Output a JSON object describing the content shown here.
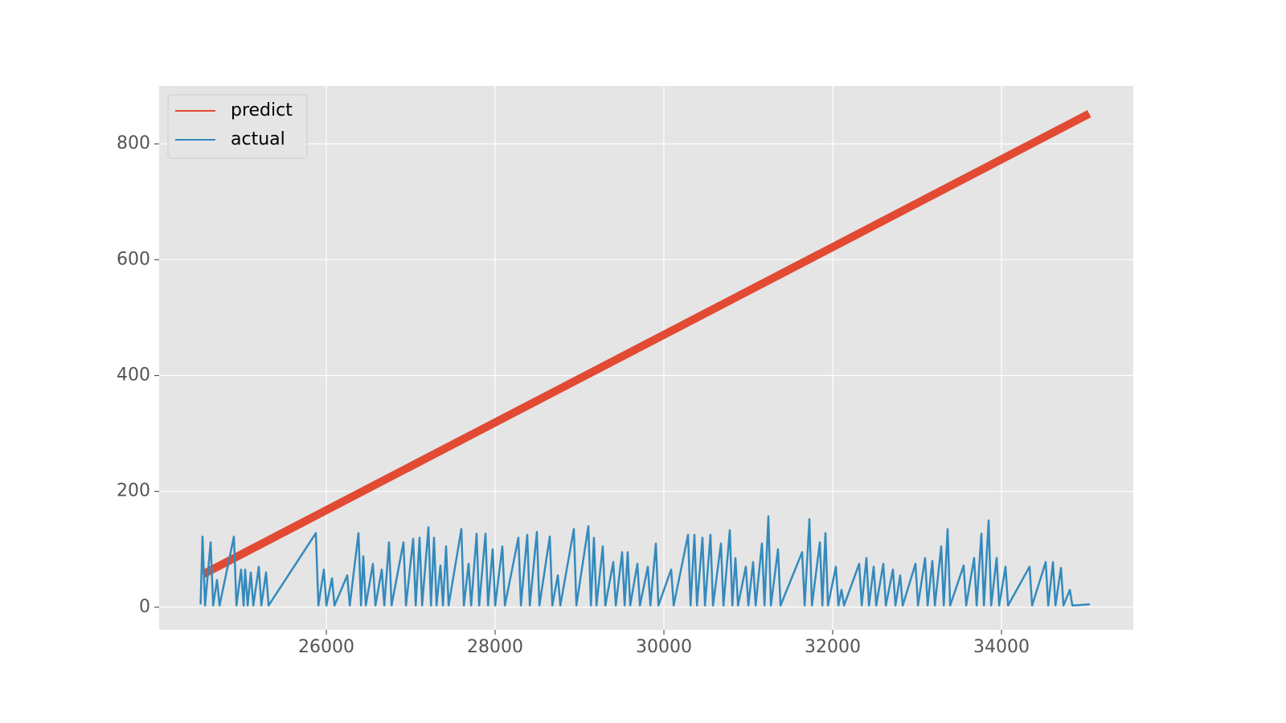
{
  "chart_data": {
    "type": "line",
    "xlim": [
      24019,
      35562
    ],
    "ylim": [
      -39,
      900
    ],
    "xticks": [
      26000,
      28000,
      30000,
      32000,
      34000
    ],
    "yticks": [
      0,
      200,
      400,
      600,
      800
    ],
    "grid": true,
    "legend": "upper-left",
    "series": [
      {
        "name": "predict",
        "color": "#E24A33",
        "x": [
          24540,
          35040
        ],
        "values": [
          57,
          852
        ]
      },
      {
        "name": "actual",
        "color": "#348ABD",
        "x": [
          24510,
          24533,
          24563,
          24629,
          24659,
          24705,
          24735,
          24905,
          24935,
          24990,
          25020,
          25038,
          25068,
          25105,
          25135,
          25200,
          25230,
          25286,
          25316,
          25876,
          25906,
          25971,
          26001,
          26067,
          26097,
          26248,
          26278,
          26381,
          26411,
          26438,
          26468,
          26552,
          26582,
          26657,
          26687,
          26743,
          26773,
          26914,
          26944,
          27029,
          27059,
          27105,
          27135,
          27210,
          27240,
          27276,
          27306,
          27352,
          27382,
          27419,
          27449,
          27600,
          27630,
          27686,
          27716,
          27781,
          27811,
          27886,
          27916,
          27971,
          28001,
          28086,
          28116,
          28276,
          28306,
          28381,
          28411,
          28495,
          28525,
          28648,
          28678,
          28743,
          28773,
          28933,
          28963,
          29105,
          29135,
          29171,
          29201,
          29276,
          29306,
          29400,
          29430,
          29505,
          29535,
          29571,
          29601,
          29686,
          29716,
          29810,
          29840,
          29905,
          29935,
          30086,
          30116,
          30286,
          30316,
          30362,
          30392,
          30457,
          30487,
          30552,
          30582,
          30676,
          30706,
          30781,
          30811,
          30848,
          30878,
          30971,
          31001,
          31057,
          31087,
          31162,
          31192,
          31238,
          31268,
          31352,
          31382,
          31638,
          31668,
          31724,
          31754,
          31848,
          31878,
          31914,
          31944,
          32038,
          32068,
          32105,
          32135,
          32314,
          32344,
          32400,
          32430,
          32486,
          32516,
          32600,
          32630,
          32714,
          32744,
          32800,
          32830,
          32981,
          33011,
          33095,
          33125,
          33181,
          33211,
          33286,
          33316,
          33362,
          33392,
          33552,
          33582,
          33676,
          33706,
          33762,
          33792,
          33848,
          33878,
          33943,
          33973,
          34048,
          34078,
          34333,
          34363,
          34524,
          34554,
          34610,
          34640,
          34705,
          34735,
          34810,
          34840,
          35048
        ],
        "values": [
          5,
          122,
          3,
          112,
          3,
          47,
          3,
          122,
          3,
          65,
          3,
          65,
          3,
          60,
          3,
          70,
          3,
          60,
          3,
          128,
          3,
          65,
          3,
          50,
          3,
          55,
          3,
          128,
          3,
          88,
          3,
          75,
          3,
          65,
          3,
          112,
          3,
          112,
          3,
          118,
          3,
          120,
          3,
          138,
          3,
          120,
          3,
          72,
          3,
          105,
          3,
          135,
          3,
          75,
          3,
          127,
          3,
          127,
          3,
          100,
          3,
          105,
          3,
          120,
          3,
          125,
          3,
          130,
          3,
          122,
          3,
          55,
          3,
          135,
          3,
          140,
          3,
          120,
          3,
          105,
          3,
          78,
          3,
          95,
          3,
          95,
          3,
          75,
          3,
          70,
          3,
          110,
          3,
          65,
          3,
          125,
          3,
          125,
          3,
          120,
          3,
          125,
          3,
          110,
          3,
          133,
          3,
          85,
          3,
          70,
          3,
          78,
          3,
          110,
          3,
          157,
          3,
          100,
          3,
          95,
          3,
          152,
          3,
          112,
          3,
          128,
          3,
          70,
          3,
          30,
          3,
          75,
          3,
          85,
          3,
          70,
          3,
          75,
          3,
          65,
          3,
          55,
          3,
          75,
          3,
          85,
          3,
          80,
          3,
          105,
          3,
          135,
          3,
          72,
          3,
          85,
          3,
          127,
          3,
          150,
          3,
          85,
          3,
          70,
          3,
          70,
          3,
          78,
          3,
          78,
          3,
          68,
          3,
          30,
          3,
          5
        ]
      }
    ]
  }
}
